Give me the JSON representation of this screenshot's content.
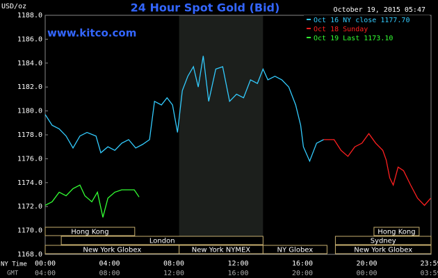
{
  "chart_data": {
    "type": "line",
    "title": "24 Hour Spot Gold (Bid)",
    "timestamp": "October 19, 2015 05:47",
    "unit_label": "USD/oz",
    "site": "www.kitco.com",
    "x_axis_label": "NY Time",
    "x2_axis_label": "GMT",
    "xlim": [
      0,
      24
    ],
    "ylim": [
      1168,
      1188
    ],
    "xticks": [
      {
        "value": 0,
        "label": "00:00"
      },
      {
        "value": 4,
        "label": "04:00"
      },
      {
        "value": 8,
        "label": "08:00"
      },
      {
        "value": 12,
        "label": "12:00"
      },
      {
        "value": 16,
        "label": "16:00"
      },
      {
        "value": 20,
        "label": "20:00"
      },
      {
        "value": 23.98,
        "label": "23:59"
      }
    ],
    "x2ticks": [
      {
        "value": 0,
        "label": "04:00"
      },
      {
        "value": 4,
        "label": "08:00"
      },
      {
        "value": 8,
        "label": "12:00"
      },
      {
        "value": 12,
        "label": "16:00"
      },
      {
        "value": 16,
        "label": "20:00"
      },
      {
        "value": 20,
        "label": "00:00"
      },
      {
        "value": 23.98,
        "label": "03:59"
      }
    ],
    "yticks": [
      {
        "value": 1168,
        "label": "1168.0"
      },
      {
        "value": 1170,
        "label": "1170.0"
      },
      {
        "value": 1172,
        "label": "1172.0"
      },
      {
        "value": 1174,
        "label": "1174.0"
      },
      {
        "value": 1176,
        "label": "1176.0"
      },
      {
        "value": 1178,
        "label": "1178.0"
      },
      {
        "value": 1180,
        "label": "1180.0"
      },
      {
        "value": 1182,
        "label": "1182.0"
      },
      {
        "value": 1184,
        "label": "1184.0"
      },
      {
        "value": 1186,
        "label": "1186.0"
      },
      {
        "value": 1188,
        "label": "1188.0"
      }
    ],
    "shaded_x": [
      8.33,
      13.55
    ],
    "legend": "upper right",
    "sessions": [
      [
        {
          "label": "Hong Kong",
          "start": 0,
          "end": 5.57
        },
        {
          "label": "Hong Kong",
          "start": 20.45,
          "end": 23.26
        }
      ],
      [
        {
          "label": "London",
          "start": 1.0,
          "end": 13.55
        },
        {
          "label": "Sydney",
          "start": 18.05,
          "end": 24
        }
      ],
      [
        {
          "label": "New York Globex",
          "start": 0,
          "end": 8.33
        },
        {
          "label": "New York NYMEX",
          "start": 8.33,
          "end": 13.55
        },
        {
          "label": "NY Globex",
          "start": 13.55,
          "end": 17.53
        },
        {
          "label": "New York Globex",
          "start": 18.05,
          "end": 24
        }
      ]
    ],
    "series": [
      {
        "name": "Oct 16 NY close 1177.70",
        "color": "#33ccff",
        "x": [
          0,
          0.43,
          0.87,
          1.3,
          1.73,
          2.16,
          2.6,
          3.16,
          3.46,
          3.9,
          4.33,
          4.76,
          5.19,
          5.63,
          6.06,
          6.49,
          6.8,
          7.23,
          7.58,
          7.92,
          8.23,
          8.53,
          8.87,
          9.22,
          9.52,
          9.83,
          10.17,
          10.61,
          11.04,
          11.47,
          11.9,
          12.34,
          12.77,
          13.2,
          13.55,
          13.85,
          14.29,
          14.72,
          15.15,
          15.58,
          15.89,
          16.06,
          16.45,
          16.88,
          17.32
        ],
        "values": [
          1179.7,
          1178.8,
          1178.5,
          1177.9,
          1176.9,
          1177.9,
          1178.2,
          1177.9,
          1176.5,
          1177.0,
          1176.7,
          1177.3,
          1177.6,
          1176.9,
          1177.2,
          1177.6,
          1180.8,
          1180.5,
          1181.1,
          1180.5,
          1178.2,
          1181.7,
          1182.9,
          1183.7,
          1182.0,
          1184.6,
          1180.8,
          1183.5,
          1183.7,
          1180.8,
          1181.4,
          1181.1,
          1182.6,
          1182.3,
          1183.5,
          1182.6,
          1182.9,
          1182.6,
          1182.0,
          1180.5,
          1178.8,
          1177.0,
          1175.8,
          1177.3,
          1177.6
        ]
      },
      {
        "name": "Oct 18 Sunday",
        "color": "#ff2020",
        "x": [
          17.32,
          17.97,
          18.4,
          18.83,
          19.26,
          19.7,
          20.13,
          20.56,
          21.0,
          21.21,
          21.43,
          21.65,
          21.95,
          22.29,
          22.73,
          23.16,
          23.59,
          23.98
        ],
        "values": [
          1177.6,
          1177.6,
          1176.7,
          1176.2,
          1177.0,
          1177.3,
          1178.1,
          1177.3,
          1176.7,
          1175.9,
          1174.4,
          1173.8,
          1175.3,
          1175.0,
          1173.8,
          1172.7,
          1172.1,
          1172.7
        ]
      },
      {
        "name": "Oct 19 Last 1173.10",
        "color": "#33ff33",
        "x": [
          0,
          0.43,
          0.87,
          1.3,
          1.73,
          2.16,
          2.47,
          2.9,
          3.25,
          3.59,
          3.9,
          4.33,
          4.76,
          5.19,
          5.54,
          5.84
        ],
        "values": [
          1172.1,
          1172.4,
          1173.2,
          1172.9,
          1173.5,
          1173.8,
          1172.9,
          1172.4,
          1173.2,
          1171.1,
          1172.7,
          1173.2,
          1173.4,
          1173.4,
          1173.4,
          1172.8
        ]
      }
    ]
  }
}
